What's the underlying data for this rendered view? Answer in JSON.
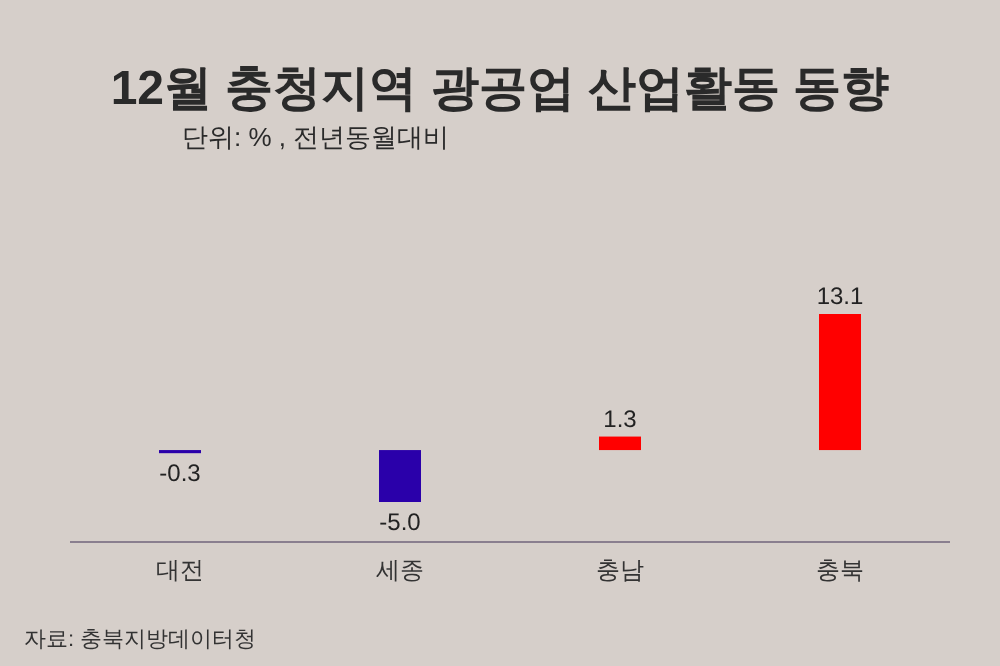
{
  "chart_data": {
    "type": "bar",
    "title": "12월 충청지역 광공업 산업활동 동향",
    "subtitle": "단위: % , 전년동월대비",
    "categories": [
      "대전",
      "세종",
      "충남",
      "충북"
    ],
    "values": [
      -0.3,
      -5.0,
      1.3,
      13.1
    ],
    "colors": [
      "#2a00aa",
      "#2a00aa",
      "#ff0000",
      "#ff0000"
    ],
    "value_labels": [
      "-0.3",
      "-5.0",
      "1.3",
      "13.1"
    ],
    "annotations": [
      "자료: 충북지방데이터청"
    ]
  }
}
